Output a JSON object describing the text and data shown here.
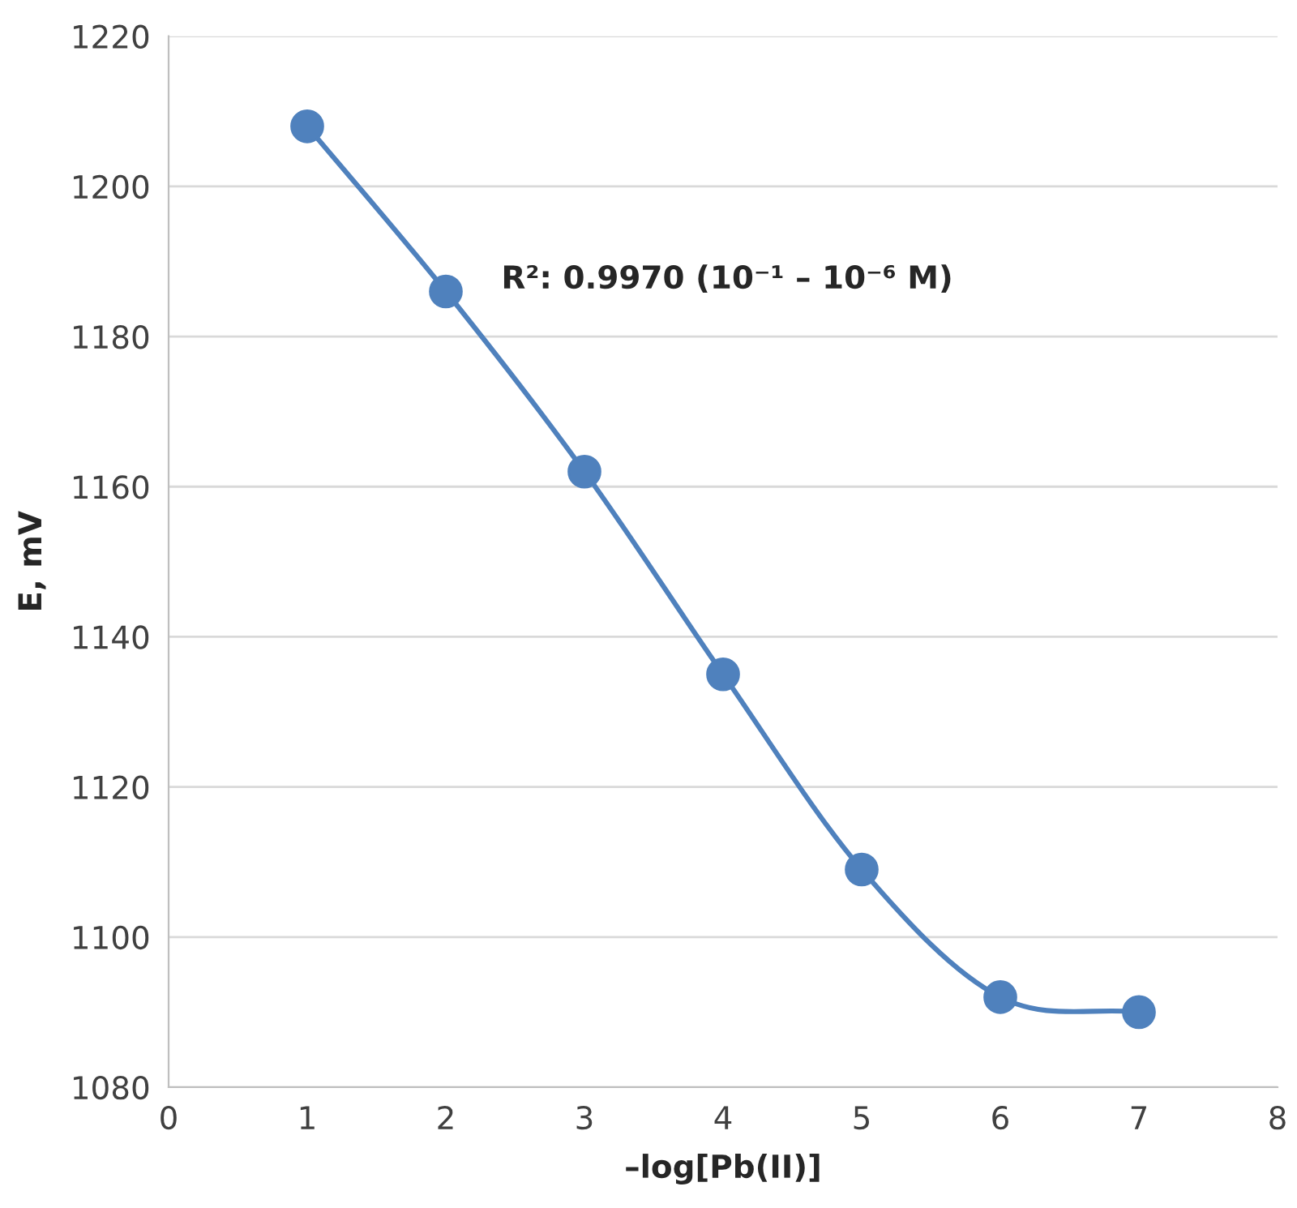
{
  "chart_data": {
    "type": "line",
    "xlabel": "–log[Pb(II)]",
    "ylabel": "E, mV",
    "annotations": [
      "R²: 0.9970 (10⁻¹ – 10⁻⁶ M)"
    ],
    "series": [
      {
        "color": "#4f81bd",
        "x": [
          1,
          2,
          3,
          4,
          5,
          6,
          7
        ],
        "values": [
          1208,
          1186,
          1162,
          1135,
          1109,
          1092,
          1090
        ]
      }
    ],
    "xlim": [
      0,
      8
    ],
    "xticks": [
      0,
      1,
      2,
      3,
      4,
      5,
      6,
      7,
      8
    ],
    "ylim": [
      1080,
      1220
    ],
    "yticks": [
      1080,
      1100,
      1120,
      1140,
      1160,
      1180,
      1200,
      1220
    ],
    "grid": "y",
    "marker": "circle",
    "line_style": "solid",
    "legend": false
  }
}
